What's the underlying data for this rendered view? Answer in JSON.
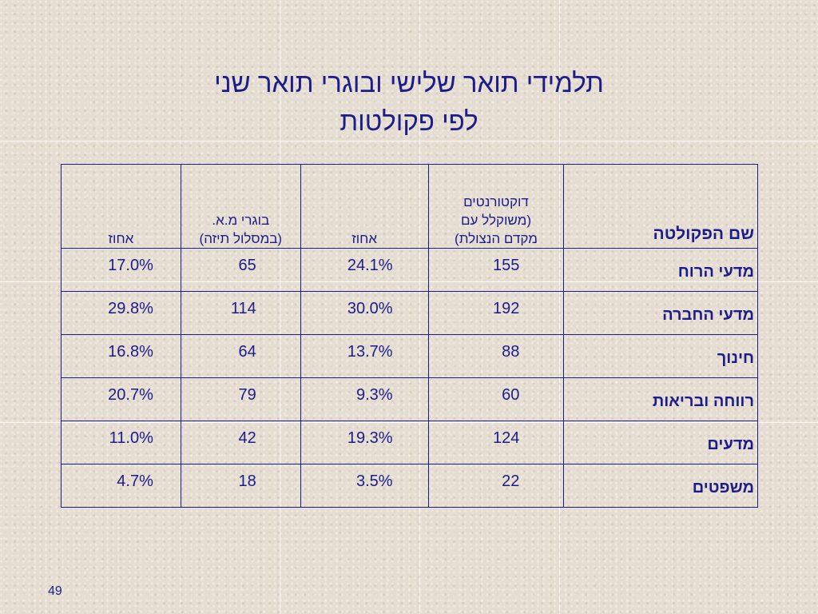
{
  "title": {
    "line1": "תלמידי תואר שלישי ובוגרי תואר שני",
    "line2": "לפי פקולטות"
  },
  "table": {
    "headers": {
      "faculty": "שם הפקולטה",
      "doctoral_line1": "דוקטורנטים",
      "doctoral_line2": "(משוקלל עם",
      "doctoral_line3": "מקדם הנצולת)",
      "pct1": "אחוז",
      "ma_line1": "בוגרי מ.א.",
      "ma_line2": "(במסלול תיזה)",
      "pct2": "אחוז"
    },
    "rows": [
      {
        "faculty": "מדעי הרוח",
        "doctoral": "155",
        "pct1": "24.1%",
        "ma": "65",
        "pct2": "17.0%"
      },
      {
        "faculty": "מדעי החברה",
        "doctoral": "192",
        "pct1": "30.0%",
        "ma": "114",
        "pct2": "29.8%"
      },
      {
        "faculty": "חינוך",
        "doctoral": "88",
        "pct1": "13.7%",
        "ma": "64",
        "pct2": "16.8%"
      },
      {
        "faculty": "רווחה ובריאות",
        "doctoral": "60",
        "pct1": "9.3%",
        "ma": "79",
        "pct2": "20.7%"
      },
      {
        "faculty": "מדעים",
        "doctoral": "124",
        "pct1": "19.3%",
        "ma": "42",
        "pct2": "11.0%"
      },
      {
        "faculty": "משפטים",
        "doctoral": "22",
        "pct1": "3.5%",
        "ma": "18",
        "pct2": "4.7%"
      }
    ]
  },
  "page_number": "49"
}
